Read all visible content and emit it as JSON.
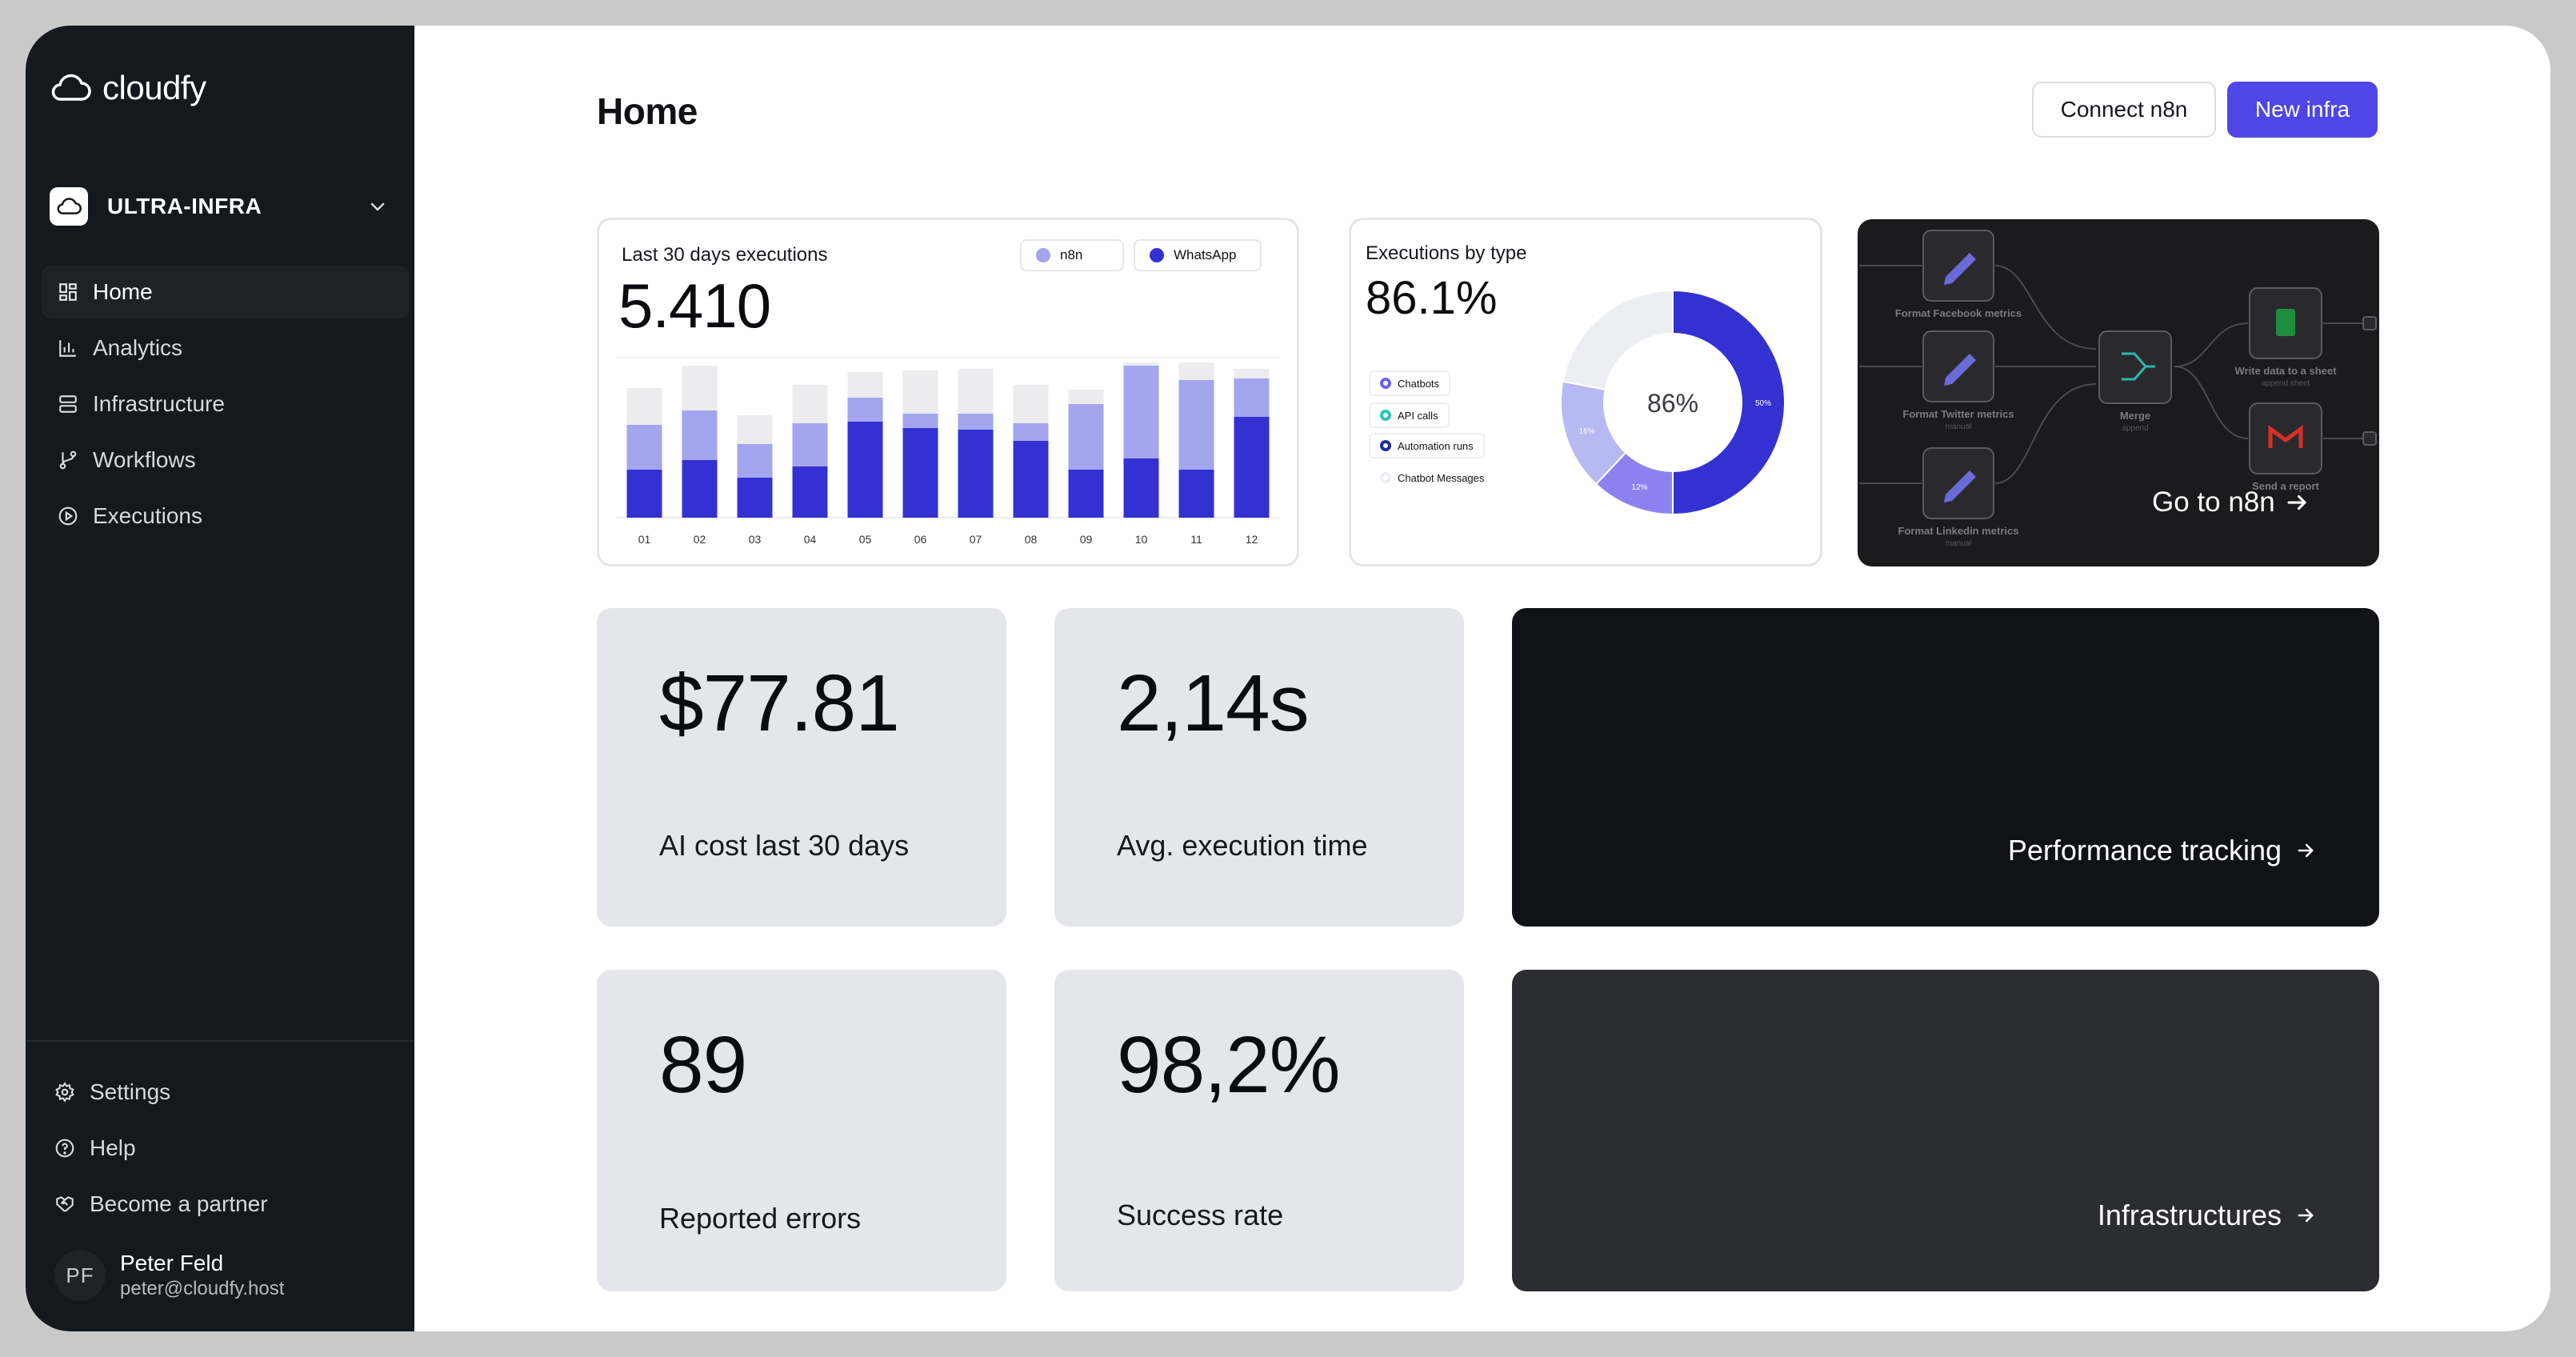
{
  "app": {
    "brand": "cloudfy"
  },
  "sidebar": {
    "workspace": "ULTRA-INFRA",
    "nav": [
      {
        "label": "Home",
        "icon": "grid-icon",
        "active": true
      },
      {
        "label": "Analytics",
        "icon": "bar-chart-icon"
      },
      {
        "label": "Infrastructure",
        "icon": "server-icon"
      },
      {
        "label": "Workflows",
        "icon": "git-branch-icon"
      },
      {
        "label": "Executions",
        "icon": "play-circle-icon"
      }
    ],
    "bottom_nav": [
      {
        "label": "Settings",
        "icon": "gear-icon"
      },
      {
        "label": "Help",
        "icon": "help-circle-icon"
      },
      {
        "label": "Become a partner",
        "icon": "handshake-icon"
      }
    ],
    "user": {
      "initials": "PF",
      "name": "Peter Feld",
      "email": "peter@cloudfy.host"
    }
  },
  "header": {
    "title": "Home",
    "connect_label": "Connect n8n",
    "new_label": "New infra"
  },
  "colors": {
    "accent": "#4f46e5",
    "series_light": "#a3a6ec",
    "series_dark": "#3431d3",
    "bar_bg": "#ececef"
  },
  "chart_data": [
    {
      "type": "bar",
      "title": "Last 30 days executions",
      "total": "5.410",
      "categories": [
        "01",
        "02",
        "03",
        "04",
        "05",
        "06",
        "07",
        "08",
        "09",
        "10",
        "11",
        "12"
      ],
      "series": [
        {
          "name": "WhatsApp",
          "values": [
            30,
            36,
            25,
            32,
            60,
            56,
            55,
            48,
            30,
            37,
            30,
            63
          ]
        },
        {
          "name": "n8n",
          "values": [
            28,
            31,
            21,
            27,
            15,
            9,
            10,
            11,
            41,
            58,
            56,
            24
          ]
        }
      ],
      "background": [
        81,
        95,
        64,
        83,
        91,
        92,
        93,
        83,
        80,
        97,
        97,
        93
      ],
      "ylim": [
        0,
        100
      ]
    },
    {
      "type": "pie",
      "title": "Executions by type",
      "total": "86.1%",
      "center_label": "86%",
      "legend": [
        "Chatbots",
        "API calls",
        "Automation runs",
        "Chatbot Messages"
      ],
      "slices": [
        {
          "label": "50%",
          "value": 50,
          "color": "#3431d3"
        },
        {
          "label": "12%",
          "value": 12,
          "color": "#8b82f0"
        },
        {
          "label": "16%",
          "value": 16,
          "color": "#b7b9f2"
        },
        {
          "label": "",
          "value": 22,
          "color": "#eceef1"
        }
      ]
    }
  ],
  "n8n_card": {
    "cta": "Go to n8n",
    "nodes": {
      "facebook": "Format Facebook metrics",
      "twitter": "Format Twitter metrics",
      "twitter_sub": "manual",
      "linkedin": "Format Linkedin metrics",
      "linkedin_sub": "manual",
      "merge": "Merge",
      "merge_sub": "append",
      "sheet": "Write data to a sheet",
      "sheet_sub": "append sheet",
      "report": "Send a report"
    }
  },
  "stats": [
    {
      "value": "$77.81",
      "label": "AI cost last 30 days"
    },
    {
      "value": "2,14s",
      "label": "Avg. execution time"
    },
    {
      "value": "89",
      "label": "Reported errors"
    },
    {
      "value": "98,2%",
      "label": "Success rate"
    }
  ],
  "links": {
    "performance": "Performance tracking",
    "infrastructures": "Infrastructures"
  }
}
